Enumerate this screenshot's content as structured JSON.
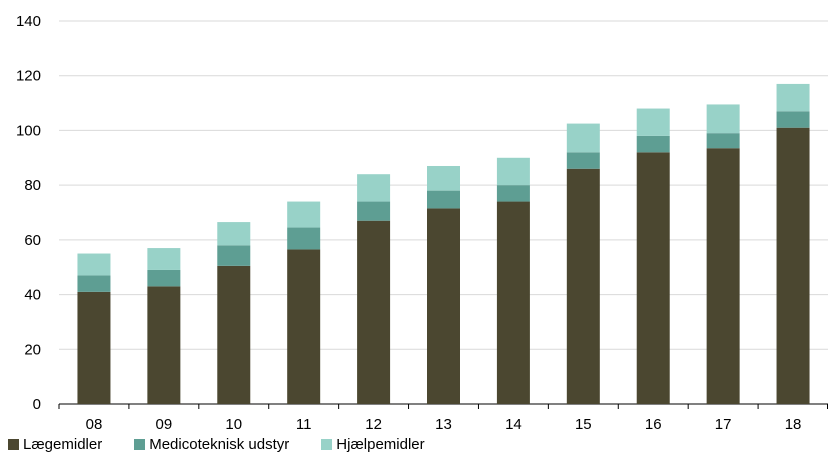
{
  "chart_data": {
    "type": "bar",
    "stacked": true,
    "categories": [
      "08",
      "09",
      "10",
      "11",
      "12",
      "13",
      "14",
      "15",
      "16",
      "17",
      "18"
    ],
    "series": [
      {
        "name": "Lægemidler",
        "color": "#4b4730",
        "values": [
          41,
          43,
          50.5,
          56.5,
          67,
          71.5,
          74,
          86,
          92,
          93.5,
          101
        ]
      },
      {
        "name": "Medicoteknisk udstyr",
        "color": "#5e9e93",
        "values": [
          6,
          6,
          7.5,
          8,
          7,
          6.5,
          6,
          6,
          6,
          5.5,
          6
        ]
      },
      {
        "name": "Hjælpemidler",
        "color": "#98d2c8",
        "values": [
          8,
          8,
          8.5,
          9.5,
          10,
          9,
          10,
          10.5,
          10,
          10.5,
          10
        ]
      }
    ],
    "ylim": [
      0,
      140
    ],
    "yticks": [
      0,
      20,
      40,
      60,
      80,
      100,
      120,
      140
    ],
    "grid": true,
    "legend_position": "bottom-left"
  }
}
